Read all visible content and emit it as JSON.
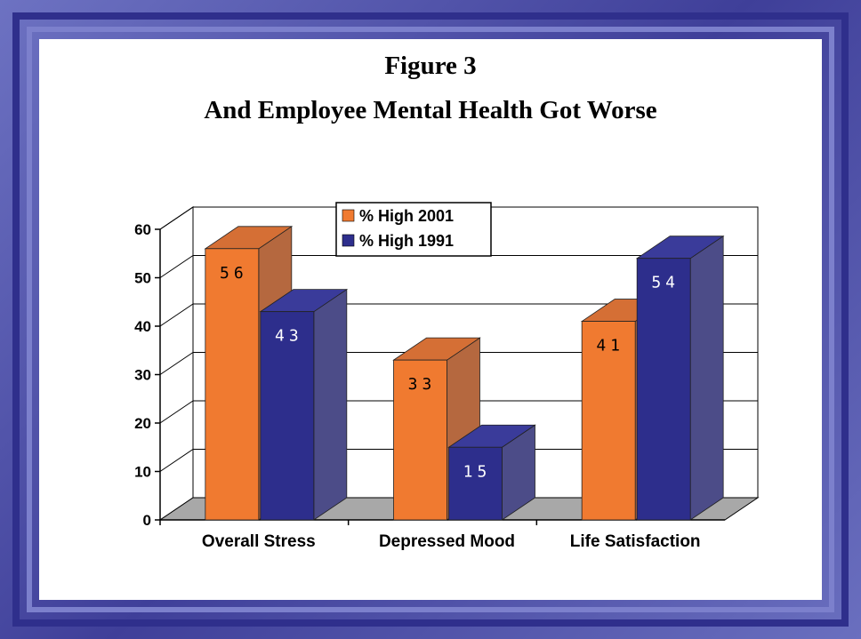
{
  "chart_data": {
    "type": "bar",
    "title": "Figure 3",
    "subtitle": "And Employee Mental Health Got Worse",
    "categories": [
      "Overall Stress",
      "Depressed Mood",
      "Life Satisfaction"
    ],
    "series": [
      {
        "name": "% High 2001",
        "values": [
          56,
          33,
          41
        ]
      },
      {
        "name": "% High 1991",
        "values": [
          43,
          15,
          54
        ]
      }
    ],
    "data_labels": [
      [
        "56",
        "33",
        "41"
      ],
      [
        "43",
        "15",
        "54"
      ]
    ],
    "xlabel": "",
    "ylabel": "",
    "ylim": [
      0,
      60
    ],
    "yticks": [
      "0",
      "10",
      "20",
      "30",
      "40",
      "50",
      "60"
    ],
    "grid": true,
    "legend_position": "top-center",
    "colors": {
      "series_2001": "#f07a30",
      "series_1991": "#2d2e8c",
      "frame_outer": "#3f3f99",
      "floor": "#a8a8a8"
    }
  }
}
